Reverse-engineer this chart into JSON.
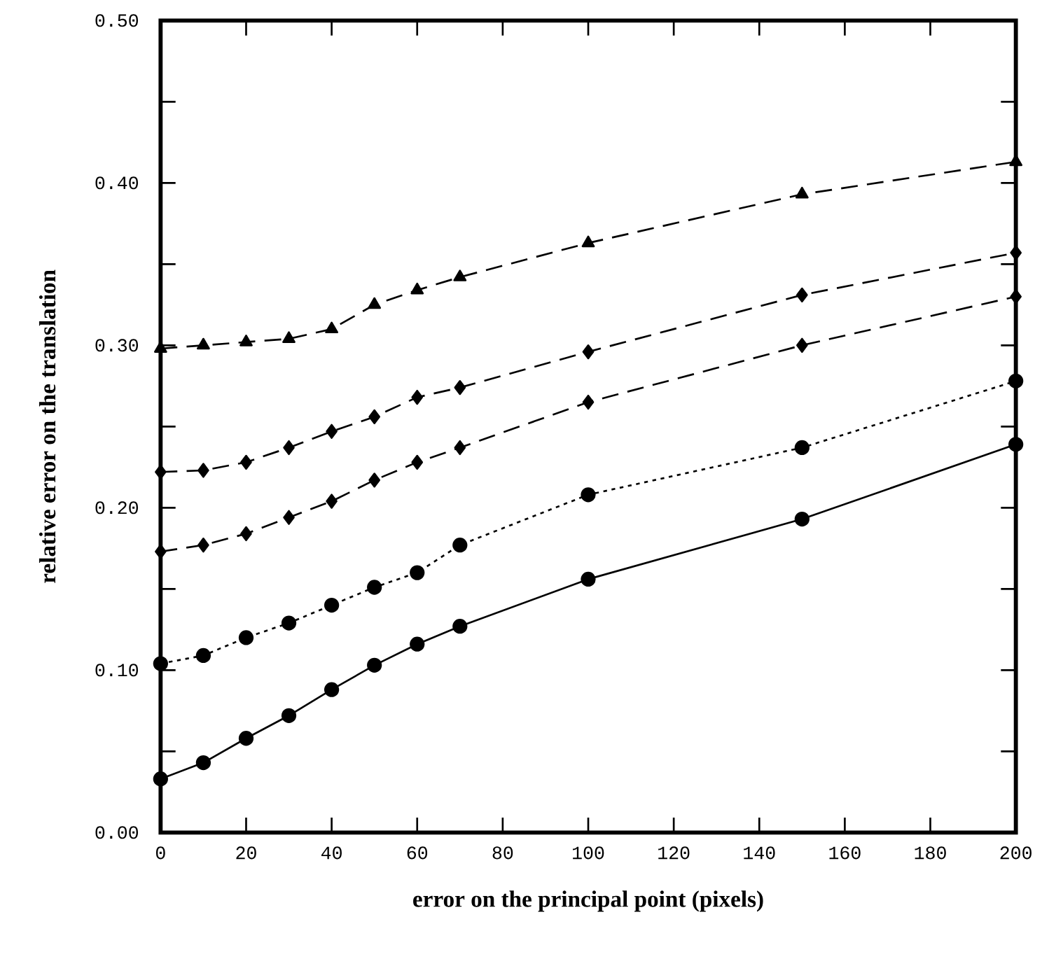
{
  "chart_data": {
    "type": "line",
    "xlabel": "error on the principal point (pixels)",
    "ylabel": "relative error on the translation",
    "x": [
      0,
      10,
      20,
      30,
      40,
      50,
      60,
      70,
      100,
      150,
      200
    ],
    "series": [
      {
        "color": "#000000",
        "marker": "circle",
        "line_style": "solid",
        "values": [
          0.033,
          0.043,
          0.058,
          0.072,
          0.088,
          0.103,
          0.116,
          0.127,
          0.156,
          0.193,
          0.239
        ]
      },
      {
        "color": "#000000",
        "marker": "circle",
        "line_style": "dotted",
        "values": [
          0.104,
          0.109,
          0.12,
          0.129,
          0.14,
          0.151,
          0.16,
          0.177,
          0.208,
          0.237,
          0.278
        ]
      },
      {
        "color": "#000000",
        "marker": "diamond",
        "line_style": "dashed",
        "values": [
          0.173,
          0.177,
          0.184,
          0.194,
          0.204,
          0.217,
          0.228,
          0.237,
          0.265,
          0.3,
          0.33
        ]
      },
      {
        "color": "#000000",
        "marker": "diamond",
        "line_style": "dashed",
        "values": [
          0.222,
          0.223,
          0.228,
          0.237,
          0.247,
          0.256,
          0.268,
          0.274,
          0.296,
          0.331,
          0.357
        ]
      },
      {
        "color": "#000000",
        "marker": "triangle",
        "line_style": "dashed",
        "values": [
          0.298,
          0.3,
          0.302,
          0.304,
          0.31,
          0.325,
          0.334,
          0.342,
          0.363,
          0.393,
          0.413
        ]
      }
    ],
    "xlim": [
      0,
      200
    ],
    "ylim": [
      0,
      0.5
    ],
    "xticks": [
      0,
      20,
      40,
      60,
      80,
      100,
      120,
      140,
      160,
      180,
      200
    ],
    "yticks": [
      {
        "value": 0,
        "label": "0.00"
      },
      {
        "value": 0.05,
        "label": null
      },
      {
        "value": 0.1,
        "label": "0.10"
      },
      {
        "value": 0.15,
        "label": null
      },
      {
        "value": 0.2,
        "label": "0.20"
      },
      {
        "value": 0.25,
        "label": null
      },
      {
        "value": 0.3,
        "label": "0.30"
      },
      {
        "value": 0.35,
        "label": null
      },
      {
        "value": 0.4,
        "label": "0.40"
      },
      {
        "value": 0.45,
        "label": null
      },
      {
        "value": 0.5,
        "label": "0.50"
      }
    ],
    "grid": false
  }
}
